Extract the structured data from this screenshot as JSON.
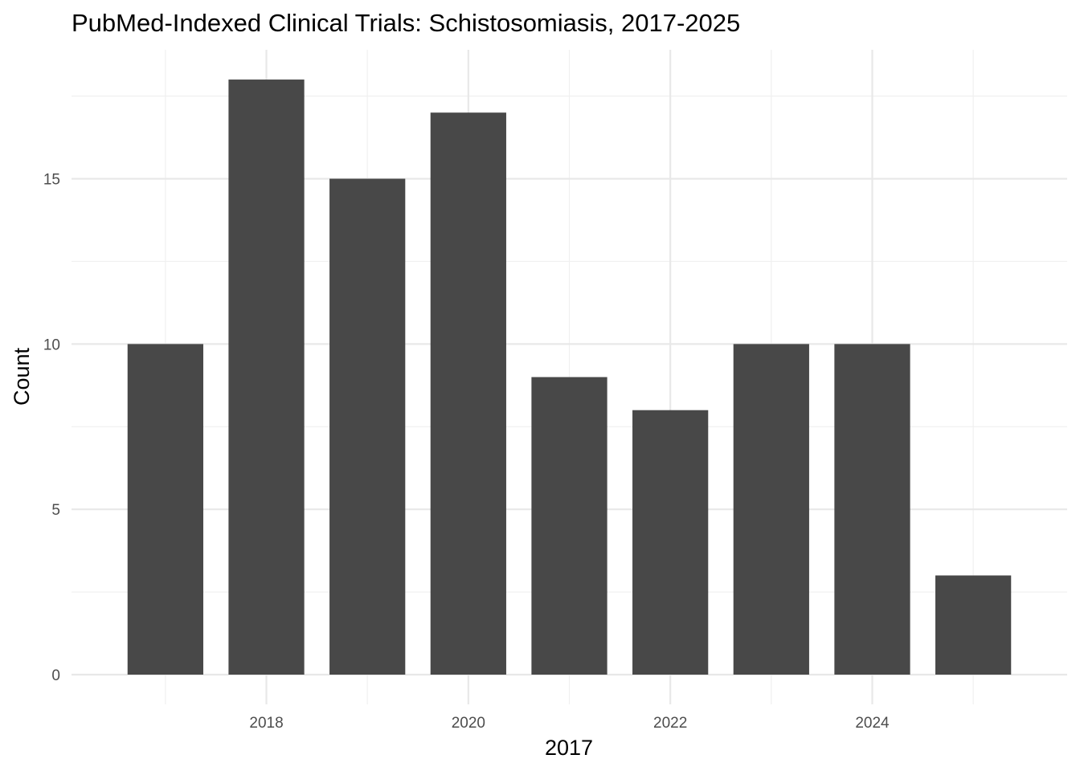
{
  "chart_data": {
    "type": "bar",
    "title": "PubMed-Indexed Clinical Trials: Schistosomiasis, 2017-2025",
    "xlabel": "2017",
    "ylabel": "Count",
    "categories": [
      2017,
      2018,
      2019,
      2020,
      2021,
      2022,
      2023,
      2024,
      2025
    ],
    "values": [
      10,
      18,
      15,
      17,
      9,
      8,
      10,
      10,
      3
    ],
    "x_ticks": [
      2018,
      2020,
      2022,
      2024
    ],
    "y_ticks": [
      0,
      5,
      10,
      15
    ],
    "ylim": [
      0,
      18.9
    ],
    "xlim": [
      2016.07,
      2025.93
    ],
    "grid": true,
    "bar_color": "#484848",
    "legend": "none"
  }
}
